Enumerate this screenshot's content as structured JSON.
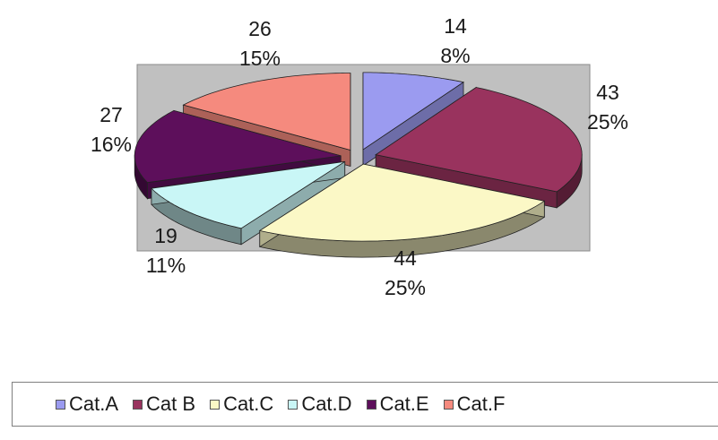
{
  "chart_data": {
    "type": "pie",
    "categories": [
      "Cat.A",
      "Cat B",
      "Cat.C",
      "Cat.D",
      "Cat.E",
      "Cat.F"
    ],
    "values": [
      14,
      43,
      44,
      19,
      27,
      26
    ],
    "percent_labels": [
      "8%",
      "25%",
      "25%",
      "11%",
      "16%",
      "15%"
    ],
    "colors": [
      "#9b9bf0",
      "#99335e",
      "#fbf8c6",
      "#c9f6f6",
      "#5d0f5b",
      "#f58a7e"
    ],
    "three_d": true,
    "exploded": true,
    "plot_area_background": "#c0c0c0",
    "legend_position": "bottom"
  }
}
